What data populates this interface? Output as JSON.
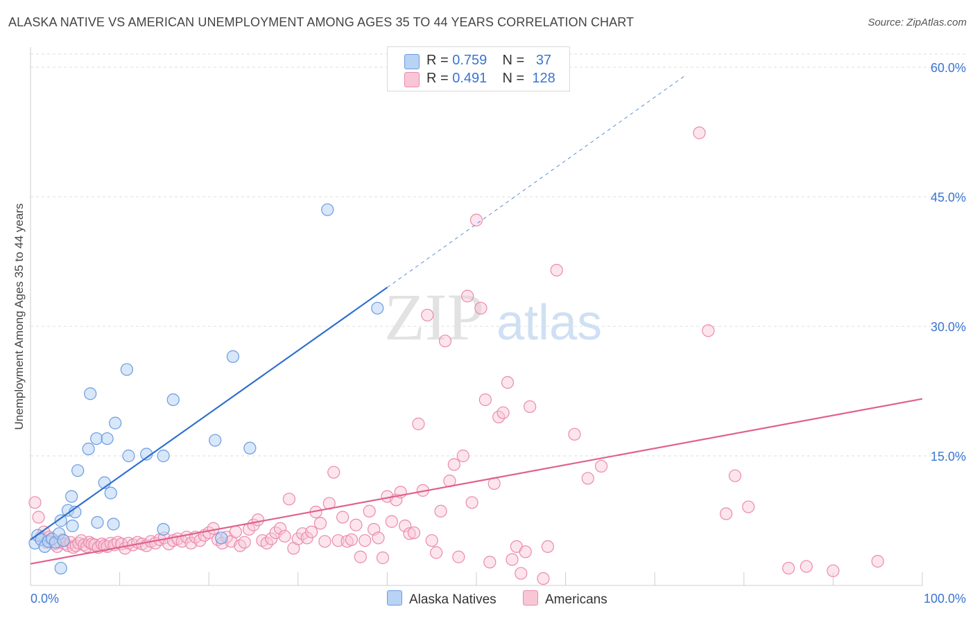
{
  "title": "ALASKA NATIVE VS AMERICAN UNEMPLOYMENT AMONG AGES 35 TO 44 YEARS CORRELATION CHART",
  "source": "Source: ZipAtlas.com",
  "watermark": {
    "zip": "ZIP",
    "atlas": "atlas"
  },
  "legend": {
    "series1": {
      "r_label": "R =",
      "r_value": "0.759",
      "n_label": "N =",
      "n_value": "37"
    },
    "series2": {
      "r_label": "R =",
      "r_value": "0.491",
      "n_label": "N =",
      "n_value": "128"
    }
  },
  "bottom_legend": {
    "series1": "Alaska Natives",
    "series2": "Americans"
  },
  "colors": {
    "series1_fill": "#b8d3f4",
    "series1_stroke": "#6a9be0",
    "series1_line": "#2f6fcf",
    "series2_fill": "#f9c6d6",
    "series2_stroke": "#ea8aab",
    "series2_line": "#e0608c",
    "axis_text": "#3a74d0",
    "grid": "#dddddd"
  },
  "chart_data": {
    "type": "scatter",
    "title": "ALASKA NATIVE VS AMERICAN UNEMPLOYMENT AMONG AGES 35 TO 44 YEARS CORRELATION CHART",
    "xlabel": "",
    "ylabel": "Unemployment Among Ages 35 to 44 years",
    "xlim": [
      0,
      100
    ],
    "ylim": [
      0,
      60
    ],
    "x_tick_labels": [
      "0.0%",
      "100.0%"
    ],
    "y_ticks": [
      15,
      30,
      45,
      60
    ],
    "y_tick_labels": [
      "15.0%",
      "30.0%",
      "45.0%",
      "60.0%"
    ],
    "grid": true,
    "series": [
      {
        "name": "Alaska Natives",
        "r": 0.759,
        "n": 37,
        "trend": {
          "x0": 0,
          "y0": 5.3,
          "x1": 40,
          "y1": 34.5,
          "dashed_to_x": 73.5,
          "dashed_to_y": 59.1
        },
        "points": [
          [
            0.5,
            4.9
          ],
          [
            0.8,
            5.8
          ],
          [
            1.2,
            5.3
          ],
          [
            1.6,
            4.5
          ],
          [
            2.0,
            5.1
          ],
          [
            2.4,
            5.4
          ],
          [
            2.8,
            5.0
          ],
          [
            3.2,
            6.0
          ],
          [
            3.4,
            7.5
          ],
          [
            3.7,
            5.2
          ],
          [
            3.4,
            2.0
          ],
          [
            4.2,
            8.7
          ],
          [
            4.6,
            10.3
          ],
          [
            4.7,
            6.9
          ],
          [
            5.0,
            8.5
          ],
          [
            5.3,
            13.3
          ],
          [
            6.5,
            15.8
          ],
          [
            6.7,
            22.2
          ],
          [
            7.4,
            17.0
          ],
          [
            7.5,
            7.3
          ],
          [
            8.3,
            11.9
          ],
          [
            8.6,
            17.0
          ],
          [
            9.0,
            10.7
          ],
          [
            9.3,
            7.1
          ],
          [
            9.5,
            18.8
          ],
          [
            10.8,
            25.0
          ],
          [
            11.0,
            15.0
          ],
          [
            13.0,
            15.2
          ],
          [
            14.9,
            15.0
          ],
          [
            14.9,
            6.5
          ],
          [
            16.0,
            21.5
          ],
          [
            20.7,
            16.8
          ],
          [
            21.4,
            5.5
          ],
          [
            22.7,
            26.5
          ],
          [
            24.6,
            15.9
          ],
          [
            33.3,
            43.5
          ],
          [
            38.9,
            32.1
          ]
        ]
      },
      {
        "name": "Americans",
        "r": 0.491,
        "n": 128,
        "trend": {
          "x0": 0,
          "y0": 2.5,
          "x1": 100,
          "y1": 21.6
        },
        "points": [
          [
            0.5,
            9.6
          ],
          [
            0.9,
            7.9
          ],
          [
            1.2,
            5.6
          ],
          [
            1.5,
            6.2
          ],
          [
            1.8,
            5.0
          ],
          [
            2.1,
            5.6
          ],
          [
            2.4,
            5.3
          ],
          [
            2.7,
            4.8
          ],
          [
            3.0,
            4.5
          ],
          [
            3.3,
            5.0
          ],
          [
            3.6,
            5.3
          ],
          [
            3.9,
            4.8
          ],
          [
            4.2,
            4.6
          ],
          [
            4.5,
            5.0
          ],
          [
            4.8,
            4.4
          ],
          [
            5.1,
            4.6
          ],
          [
            5.4,
            4.9
          ],
          [
            5.7,
            5.2
          ],
          [
            6.0,
            4.7
          ],
          [
            6.3,
            4.5
          ],
          [
            6.6,
            5.0
          ],
          [
            6.9,
            4.8
          ],
          [
            7.2,
            4.7
          ],
          [
            7.6,
            4.4
          ],
          [
            8.0,
            4.8
          ],
          [
            8.3,
            4.6
          ],
          [
            8.6,
            4.5
          ],
          [
            9.0,
            4.9
          ],
          [
            9.4,
            4.7
          ],
          [
            9.8,
            5.0
          ],
          [
            10.2,
            4.8
          ],
          [
            10.6,
            4.3
          ],
          [
            11.0,
            4.9
          ],
          [
            11.5,
            4.7
          ],
          [
            12.0,
            5.0
          ],
          [
            12.5,
            4.8
          ],
          [
            13.0,
            4.6
          ],
          [
            13.5,
            5.1
          ],
          [
            14.0,
            4.9
          ],
          [
            14.5,
            5.3
          ],
          [
            15.0,
            5.5
          ],
          [
            15.5,
            4.8
          ],
          [
            16.0,
            5.2
          ],
          [
            16.5,
            5.4
          ],
          [
            17.0,
            5.1
          ],
          [
            17.5,
            5.6
          ],
          [
            18.0,
            4.9
          ],
          [
            18.5,
            5.6
          ],
          [
            19.0,
            5.2
          ],
          [
            19.5,
            5.8
          ],
          [
            20.0,
            6.1
          ],
          [
            20.5,
            6.6
          ],
          [
            21.0,
            5.3
          ],
          [
            21.5,
            4.9
          ],
          [
            22.0,
            5.6
          ],
          [
            22.5,
            5.1
          ],
          [
            23.0,
            6.2
          ],
          [
            23.5,
            4.6
          ],
          [
            24.0,
            5.0
          ],
          [
            24.5,
            6.5
          ],
          [
            25.0,
            7.0
          ],
          [
            25.5,
            7.6
          ],
          [
            26.0,
            5.2
          ],
          [
            26.5,
            4.9
          ],
          [
            27.0,
            5.4
          ],
          [
            27.5,
            6.1
          ],
          [
            28.0,
            6.6
          ],
          [
            28.5,
            5.7
          ],
          [
            29.0,
            10.0
          ],
          [
            29.5,
            4.3
          ],
          [
            30.0,
            5.4
          ],
          [
            30.5,
            6.0
          ],
          [
            31.0,
            5.5
          ],
          [
            31.5,
            6.2
          ],
          [
            32.0,
            8.5
          ],
          [
            32.5,
            7.2
          ],
          [
            33.0,
            5.1
          ],
          [
            33.5,
            9.5
          ],
          [
            34.0,
            13.1
          ],
          [
            34.5,
            5.2
          ],
          [
            35.0,
            7.9
          ],
          [
            35.5,
            5.1
          ],
          [
            36.0,
            5.3
          ],
          [
            36.5,
            7.0
          ],
          [
            37.0,
            3.3
          ],
          [
            37.5,
            5.2
          ],
          [
            38.0,
            8.6
          ],
          [
            38.5,
            6.5
          ],
          [
            39.0,
            5.5
          ],
          [
            39.5,
            3.2
          ],
          [
            40.0,
            10.3
          ],
          [
            40.5,
            7.4
          ],
          [
            41.0,
            9.9
          ],
          [
            41.5,
            10.8
          ],
          [
            42.0,
            6.9
          ],
          [
            42.5,
            6.0
          ],
          [
            43.0,
            6.1
          ],
          [
            43.5,
            18.7
          ],
          [
            44.0,
            11.0
          ],
          [
            44.5,
            31.3
          ],
          [
            45.0,
            5.2
          ],
          [
            45.5,
            3.8
          ],
          [
            46.0,
            8.6
          ],
          [
            46.5,
            28.3
          ],
          [
            47.0,
            12.1
          ],
          [
            47.5,
            14.0
          ],
          [
            48.0,
            3.3
          ],
          [
            48.5,
            15.0
          ],
          [
            49.0,
            33.5
          ],
          [
            49.5,
            9.6
          ],
          [
            50.0,
            42.3
          ],
          [
            50.5,
            32.1
          ],
          [
            51.0,
            21.5
          ],
          [
            51.5,
            2.7
          ],
          [
            52.0,
            11.8
          ],
          [
            52.5,
            19.5
          ],
          [
            53.0,
            20.0
          ],
          [
            53.5,
            23.5
          ],
          [
            54.0,
            3.0
          ],
          [
            54.5,
            4.5
          ],
          [
            55.0,
            1.4
          ],
          [
            55.5,
            3.9
          ],
          [
            56.0,
            20.7
          ],
          [
            57.5,
            0.8
          ],
          [
            58.0,
            4.5
          ],
          [
            59.0,
            36.5
          ],
          [
            61.0,
            17.5
          ],
          [
            62.5,
            12.4
          ],
          [
            64.0,
            13.8
          ],
          [
            75.0,
            52.4
          ],
          [
            76.0,
            29.5
          ],
          [
            78.0,
            8.3
          ],
          [
            79.0,
            12.7
          ],
          [
            80.5,
            9.1
          ],
          [
            85.0,
            2.0
          ],
          [
            87.0,
            2.2
          ],
          [
            90.0,
            1.7
          ],
          [
            95.0,
            2.8
          ]
        ]
      }
    ]
  }
}
